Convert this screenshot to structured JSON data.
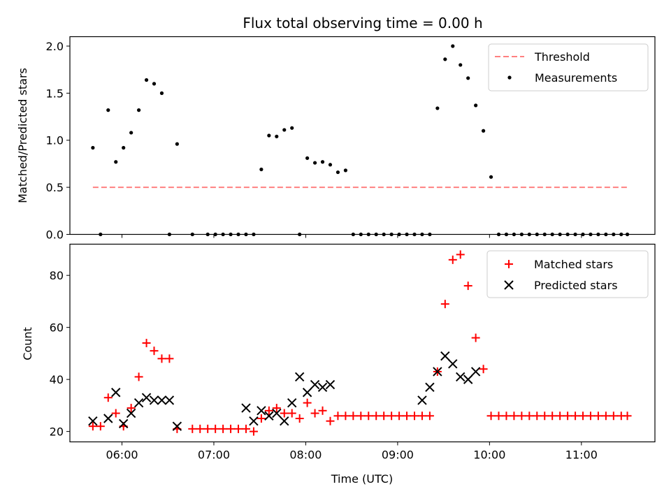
{
  "chart_data": [
    {
      "type": "scatter",
      "title": "Flux total observing time = 0.00 h",
      "xlabel": "",
      "ylabel": "Matched/Predicted stars",
      "xlim": [
        "05:26",
        "11:48"
      ],
      "ylim": [
        0,
        2.1
      ],
      "yticks": [
        0.0,
        0.5,
        1.0,
        1.5,
        2.0
      ],
      "ytick_labels": [
        "0.0",
        "0.5",
        "1.0",
        "1.5",
        "2.0"
      ],
      "xticks": [
        "06:00",
        "07:00",
        "08:00",
        "09:00",
        "10:00",
        "11:00"
      ],
      "xtick_labels_visible": false,
      "legend": {
        "placement": "top-right",
        "entries": [
          "Threshold",
          "Measurements"
        ]
      },
      "colors": {
        "threshold": "#ff8080",
        "measurements": "#000000"
      },
      "threshold": {
        "name": "Threshold",
        "value": 0.5,
        "x_start": "05:41",
        "x_end": "11:30"
      },
      "series": [
        {
          "name": "Measurements",
          "x": [
            "05:41",
            "05:46",
            "05:51",
            "05:56",
            "06:01",
            "06:06",
            "06:11",
            "06:16",
            "06:21",
            "06:26",
            "06:31",
            "06:36",
            "06:46",
            "06:56",
            "07:01",
            "07:06",
            "07:11",
            "07:16",
            "07:21",
            "07:26",
            "07:31",
            "07:36",
            "07:41",
            "07:46",
            "07:51",
            "07:56",
            "08:01",
            "08:06",
            "08:11",
            "08:16",
            "08:21",
            "08:26",
            "08:31",
            "08:36",
            "08:41",
            "08:46",
            "08:51",
            "08:56",
            "09:01",
            "09:06",
            "09:11",
            "09:16",
            "09:21",
            "09:26",
            "09:31",
            "09:36",
            "09:41",
            "09:46",
            "09:51",
            "09:56",
            "10:01",
            "10:06",
            "10:11",
            "10:16",
            "10:21",
            "10:26",
            "10:31",
            "10:36",
            "10:41",
            "10:46",
            "10:51",
            "10:56",
            "11:01",
            "11:06",
            "11:11",
            "11:16",
            "11:21",
            "11:26",
            "11:30"
          ],
          "y": [
            0.92,
            0.0,
            1.32,
            0.77,
            0.92,
            1.08,
            1.32,
            1.64,
            1.6,
            1.5,
            0.0,
            0.96,
            0.0,
            0.0,
            0.0,
            0.0,
            0.0,
            0.0,
            0.0,
            0.0,
            0.69,
            1.05,
            1.04,
            1.11,
            1.13,
            0.0,
            0.81,
            0.76,
            0.77,
            0.74,
            0.66,
            0.68,
            0.0,
            0.0,
            0.0,
            0.0,
            0.0,
            0.0,
            0.0,
            0.0,
            0.0,
            0.0,
            0.0,
            1.34,
            1.86,
            2.0,
            1.8,
            1.66,
            1.37,
            1.1,
            0.61,
            0.0,
            0.0,
            0.0,
            0.0,
            0.0,
            0.0,
            0.0,
            0.0,
            0.0,
            0.0,
            0.0,
            0.0,
            0.0,
            0.0,
            0.0,
            0.0,
            0.0,
            0.0
          ]
        }
      ]
    },
    {
      "type": "scatter",
      "title": "",
      "xlabel": "Time (UTC)",
      "ylabel": "Count",
      "xlim": [
        "05:26",
        "11:48"
      ],
      "ylim": [
        16,
        92
      ],
      "yticks": [
        20,
        40,
        60,
        80
      ],
      "ytick_labels": [
        "20",
        "40",
        "60",
        "80"
      ],
      "xticks": [
        "06:00",
        "07:00",
        "08:00",
        "09:00",
        "10:00",
        "11:00"
      ],
      "xtick_labels": [
        "06:00",
        "07:00",
        "08:00",
        "09:00",
        "10:00",
        "11:00"
      ],
      "legend": {
        "placement": "top-right",
        "entries": [
          "Matched stars",
          "Predicted stars"
        ]
      },
      "colors": {
        "matched": "#ff0000",
        "predicted": "#000000"
      },
      "series": [
        {
          "name": "Matched stars",
          "marker": "plus",
          "x": [
            "05:41",
            "05:46",
            "05:51",
            "05:56",
            "06:01",
            "06:06",
            "06:11",
            "06:16",
            "06:21",
            "06:26",
            "06:31",
            "06:36",
            "06:46",
            "06:51",
            "06:56",
            "07:01",
            "07:06",
            "07:11",
            "07:16",
            "07:21",
            "07:26",
            "07:31",
            "07:36",
            "07:41",
            "07:46",
            "07:51",
            "07:56",
            "08:01",
            "08:06",
            "08:11",
            "08:16",
            "08:21",
            "08:26",
            "08:31",
            "08:36",
            "08:41",
            "08:46",
            "08:51",
            "08:56",
            "09:01",
            "09:06",
            "09:11",
            "09:16",
            "09:21",
            "09:26",
            "09:31",
            "09:36",
            "09:41",
            "09:46",
            "09:51",
            "09:56",
            "10:01",
            "10:06",
            "10:11",
            "10:16",
            "10:21",
            "10:26",
            "10:31",
            "10:36",
            "10:41",
            "10:46",
            "10:51",
            "10:56",
            "11:01",
            "11:06",
            "11:11",
            "11:16",
            "11:21",
            "11:26",
            "11:30"
          ],
          "y": [
            22,
            22,
            33,
            27,
            22,
            29,
            41,
            54,
            51,
            48,
            48,
            21,
            21,
            21,
            21,
            21,
            21,
            21,
            21,
            21,
            20,
            25,
            28,
            29,
            27,
            27,
            25,
            31,
            27,
            28,
            24,
            26,
            26,
            26,
            26,
            26,
            26,
            26,
            26,
            26,
            26,
            26,
            26,
            26,
            43,
            69,
            86,
            88,
            76,
            56,
            44,
            26,
            26,
            26,
            26,
            26,
            26,
            26,
            26,
            26,
            26,
            26,
            26,
            26,
            26,
            26,
            26,
            26,
            26,
            26
          ]
        },
        {
          "name": "Predicted stars",
          "marker": "x",
          "x": [
            "05:41",
            "05:51",
            "05:56",
            "06:01",
            "06:06",
            "06:11",
            "06:16",
            "06:21",
            "06:26",
            "06:31",
            "06:36",
            "07:21",
            "07:26",
            "07:31",
            "07:36",
            "07:41",
            "07:46",
            "07:51",
            "07:56",
            "08:01",
            "08:06",
            "08:11",
            "08:16",
            "09:16",
            "09:21",
            "09:26",
            "09:31",
            "09:36",
            "09:41",
            "09:46",
            "09:51"
          ],
          "y": [
            24,
            25,
            35,
            23,
            27,
            31,
            33,
            32,
            32,
            32,
            22,
            29,
            24,
            28,
            26,
            27,
            24,
            31,
            41,
            35,
            38,
            37,
            38,
            32,
            37,
            43,
            49,
            46,
            41,
            40,
            43
          ]
        }
      ]
    }
  ]
}
